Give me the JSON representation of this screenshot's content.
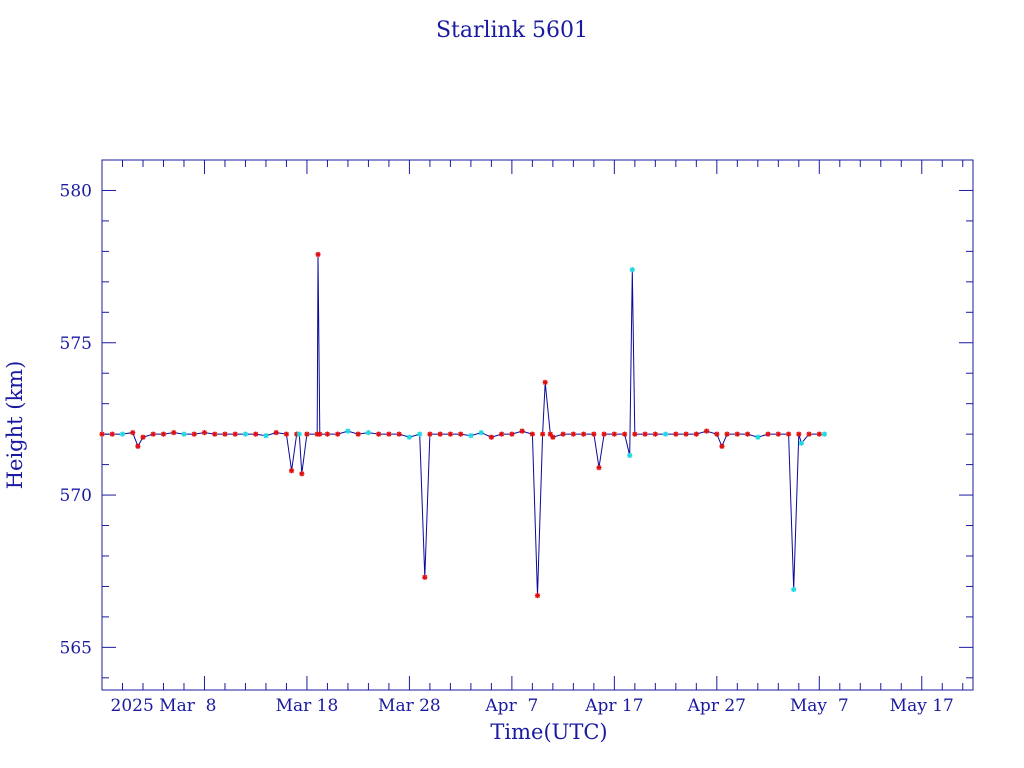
{
  "chart_data": {
    "type": "line",
    "title": "Starlink 5601",
    "xlabel": "Time(UTC)",
    "ylabel": "Height (km)",
    "x_type": "date",
    "xlim": [
      "2025-02-26",
      "2025-05-22"
    ],
    "ylim": [
      563.6,
      581.0
    ],
    "x_ticks": [
      {
        "date": "2025-03-08",
        "label": "2025 Mar  8"
      },
      {
        "date": "2025-03-18",
        "label": "Mar 18"
      },
      {
        "date": "2025-03-28",
        "label": "Mar 28"
      },
      {
        "date": "2025-04-07",
        "label": "Apr  7"
      },
      {
        "date": "2025-04-17",
        "label": "Apr 17"
      },
      {
        "date": "2025-04-27",
        "label": "Apr 27"
      },
      {
        "date": "2025-05-07",
        "label": "May  7"
      },
      {
        "date": "2025-05-17",
        "label": "May 17"
      }
    ],
    "y_ticks": [
      565,
      570,
      575,
      580
    ],
    "y_major_step": 5,
    "y_minor_step": 1,
    "x_minor_step_days": 2,
    "grid": false,
    "legend": "none",
    "colors": {
      "frame": "#1a1aa0",
      "line": "#0a0a9c",
      "marker_red": "#e01010",
      "marker_cyan": "#20d8e0",
      "text": "#1a1aa0"
    },
    "series": [
      {
        "name": "",
        "points": [
          [
            "2025-02-26",
            572.0,
            "r"
          ],
          [
            "2025-02-27",
            572.0,
            "r"
          ],
          [
            "2025-02-28",
            572.0,
            "c"
          ],
          [
            "2025-03-01",
            572.05,
            "r"
          ],
          [
            "2025-03-01T12:00",
            571.6,
            "r"
          ],
          [
            "2025-03-02",
            571.9,
            "r"
          ],
          [
            "2025-03-03",
            572.0,
            "r"
          ],
          [
            "2025-03-04",
            572.0,
            "r"
          ],
          [
            "2025-03-05",
            572.05,
            "r"
          ],
          [
            "2025-03-06",
            572.0,
            "c"
          ],
          [
            "2025-03-07",
            572.0,
            "r"
          ],
          [
            "2025-03-08",
            572.05,
            "r"
          ],
          [
            "2025-03-09",
            572.0,
            "r"
          ],
          [
            "2025-03-10",
            572.0,
            "r"
          ],
          [
            "2025-03-11",
            572.0,
            "r"
          ],
          [
            "2025-03-12",
            572.0,
            "c"
          ],
          [
            "2025-03-13",
            572.0,
            "r"
          ],
          [
            "2025-03-14",
            571.95,
            "c"
          ],
          [
            "2025-03-15",
            572.05,
            "r"
          ],
          [
            "2025-03-16",
            572.0,
            "r"
          ],
          [
            "2025-03-16T12:00",
            570.8,
            "r"
          ],
          [
            "2025-03-17",
            572.0,
            "r"
          ],
          [
            "2025-03-17T06:00",
            572.0,
            "c"
          ],
          [
            "2025-03-17T12:00",
            570.7,
            "r"
          ],
          [
            "2025-03-18",
            572.0,
            "r"
          ],
          [
            "2025-03-19",
            572.0,
            "r"
          ],
          [
            "2025-03-19T02:00",
            577.9,
            "r"
          ],
          [
            "2025-03-19T06:00",
            572.0,
            "r"
          ],
          [
            "2025-03-20",
            572.0,
            "r"
          ],
          [
            "2025-03-21",
            572.0,
            "r"
          ],
          [
            "2025-03-22",
            572.1,
            "c"
          ],
          [
            "2025-03-23",
            572.0,
            "r"
          ],
          [
            "2025-03-24",
            572.05,
            "c"
          ],
          [
            "2025-03-25",
            572.0,
            "r"
          ],
          [
            "2025-03-26",
            572.0,
            "r"
          ],
          [
            "2025-03-27",
            572.0,
            "r"
          ],
          [
            "2025-03-28",
            571.9,
            "c"
          ],
          [
            "2025-03-29",
            572.0,
            "c"
          ],
          [
            "2025-03-29T12:00",
            567.3,
            "r"
          ],
          [
            "2025-03-30",
            572.0,
            "r"
          ],
          [
            "2025-03-31",
            572.0,
            "r"
          ],
          [
            "2025-04-01",
            572.0,
            "r"
          ],
          [
            "2025-04-02",
            572.0,
            "r"
          ],
          [
            "2025-04-03",
            571.95,
            "c"
          ],
          [
            "2025-04-04",
            572.05,
            "c"
          ],
          [
            "2025-04-05",
            571.9,
            "r"
          ],
          [
            "2025-04-06",
            572.0,
            "r"
          ],
          [
            "2025-04-07",
            572.0,
            "r"
          ],
          [
            "2025-04-08",
            572.1,
            "r"
          ],
          [
            "2025-04-09",
            572.0,
            "r"
          ],
          [
            "2025-04-09T12:00",
            566.7,
            "r"
          ],
          [
            "2025-04-10",
            572.0,
            "r"
          ],
          [
            "2025-04-10T06:00",
            573.7,
            "r"
          ],
          [
            "2025-04-10T18:00",
            572.0,
            "r"
          ],
          [
            "2025-04-11",
            571.9,
            "r"
          ],
          [
            "2025-04-12",
            572.0,
            "r"
          ],
          [
            "2025-04-13",
            572.0,
            "r"
          ],
          [
            "2025-04-14",
            572.0,
            "r"
          ],
          [
            "2025-04-15",
            572.0,
            "r"
          ],
          [
            "2025-04-15T12:00",
            570.9,
            "r"
          ],
          [
            "2025-04-16",
            572.0,
            "r"
          ],
          [
            "2025-04-17",
            572.0,
            "r"
          ],
          [
            "2025-04-18",
            572.0,
            "r"
          ],
          [
            "2025-04-18T12:00",
            571.3,
            "c"
          ],
          [
            "2025-04-18T18:00",
            577.4,
            "c"
          ],
          [
            "2025-04-19",
            572.0,
            "r"
          ],
          [
            "2025-04-20",
            572.0,
            "r"
          ],
          [
            "2025-04-21",
            572.0,
            "r"
          ],
          [
            "2025-04-22",
            572.0,
            "c"
          ],
          [
            "2025-04-23",
            572.0,
            "r"
          ],
          [
            "2025-04-24",
            572.0,
            "r"
          ],
          [
            "2025-04-25",
            572.0,
            "r"
          ],
          [
            "2025-04-26",
            572.1,
            "r"
          ],
          [
            "2025-04-27",
            572.0,
            "r"
          ],
          [
            "2025-04-27T12:00",
            571.6,
            "r"
          ],
          [
            "2025-04-28",
            572.0,
            "r"
          ],
          [
            "2025-04-29",
            572.0,
            "r"
          ],
          [
            "2025-04-30",
            572.0,
            "r"
          ],
          [
            "2025-05-01",
            571.9,
            "c"
          ],
          [
            "2025-05-02",
            572.0,
            "r"
          ],
          [
            "2025-05-03",
            572.0,
            "r"
          ],
          [
            "2025-05-04",
            572.0,
            "r"
          ],
          [
            "2025-05-04T12:00",
            566.9,
            "c"
          ],
          [
            "2025-05-05",
            572.0,
            "r"
          ],
          [
            "2025-05-05T06:00",
            571.7,
            "c"
          ],
          [
            "2025-05-06",
            572.0,
            "r"
          ],
          [
            "2025-05-07",
            572.0,
            "r"
          ],
          [
            "2025-05-07T12:00",
            572.0,
            "c"
          ]
        ]
      }
    ]
  }
}
